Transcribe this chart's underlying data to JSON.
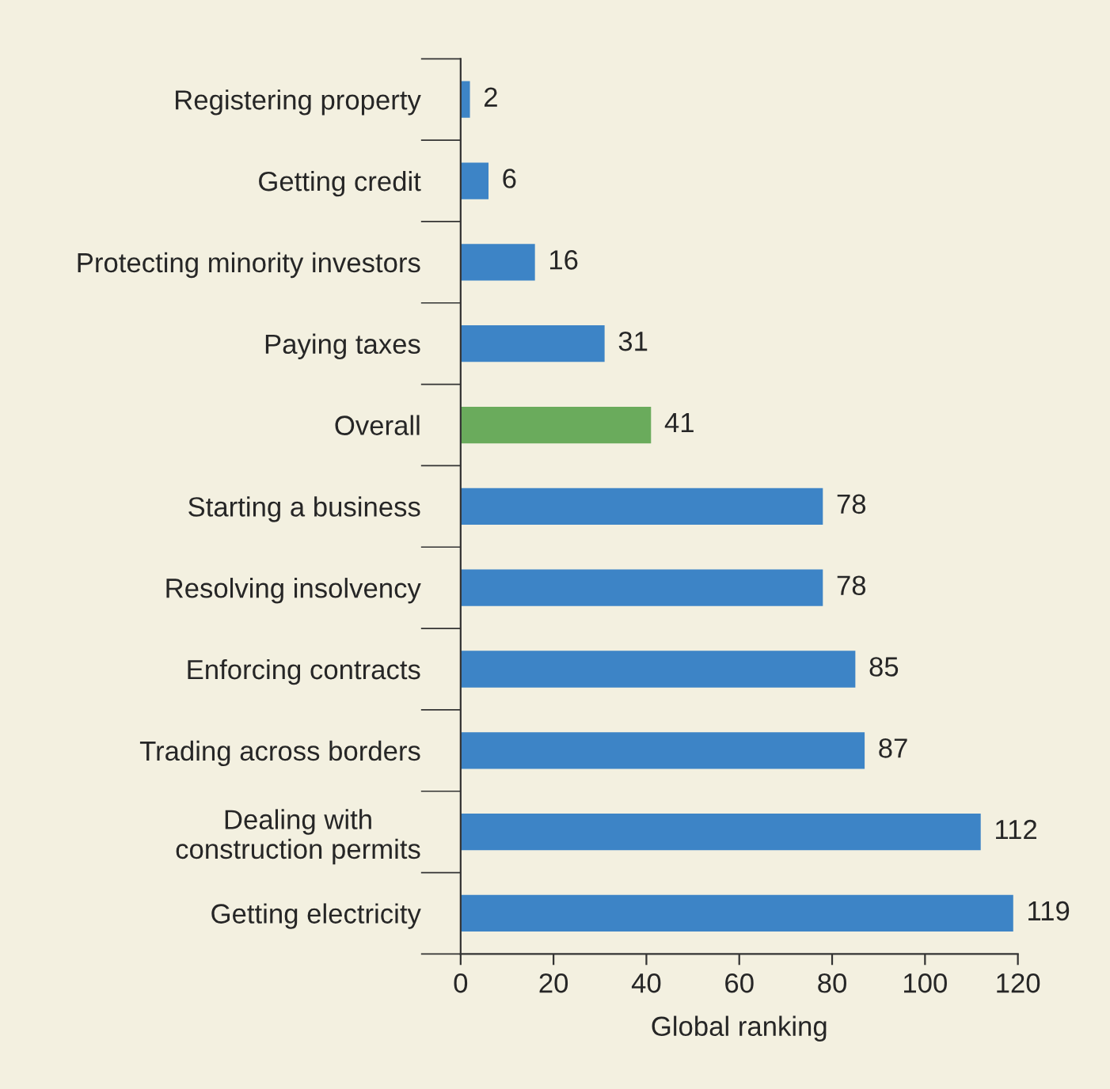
{
  "chart_data": {
    "type": "bar",
    "orientation": "horizontal",
    "xlabel": "Global ranking",
    "categories": [
      "Registering property",
      "Getting credit",
      "Protecting minority investors",
      "Paying taxes",
      "Overall",
      "Starting a business",
      "Resolving insolvency",
      "Enforcing contracts",
      "Trading across borders",
      "Dealing with\nconstruction permits",
      "Getting electricity"
    ],
    "values": [
      2,
      6,
      16,
      31,
      41,
      78,
      78,
      85,
      87,
      112,
      119
    ],
    "colors": [
      "#3d84c6",
      "#3d84c6",
      "#3d84c6",
      "#3d84c6",
      "#6aab5c",
      "#3d84c6",
      "#3d84c6",
      "#3d84c6",
      "#3d84c6",
      "#3d84c6",
      "#3d84c6"
    ],
    "xlim": [
      0,
      120
    ],
    "xticks": [
      0,
      20,
      40,
      60,
      80,
      100,
      120
    ],
    "data_labels": true,
    "grid": false
  }
}
